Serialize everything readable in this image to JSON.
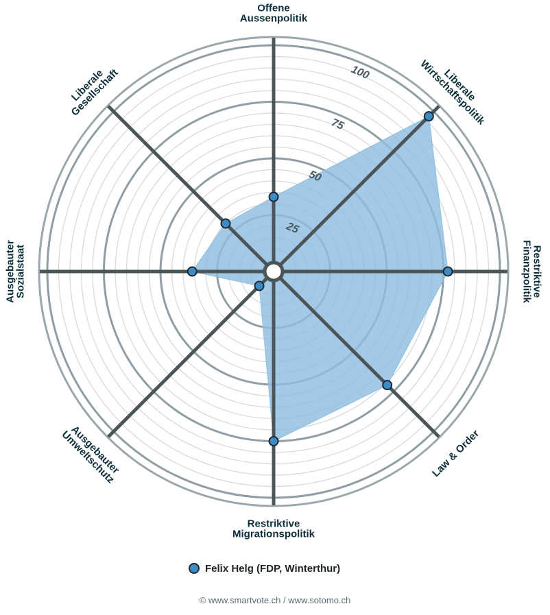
{
  "chart_data": {
    "type": "radar",
    "axes": [
      {
        "label_lines": [
          "Offene",
          "Aussenpolitik"
        ]
      },
      {
        "label_lines": [
          "Liberale",
          "Wirtschaftspolitik"
        ]
      },
      {
        "label_lines": [
          "Restriktive",
          "Finanzpolitik"
        ]
      },
      {
        "label_lines": [
          "Law & Order"
        ]
      },
      {
        "label_lines": [
          "Restriktive",
          "Migrationspolitik"
        ]
      },
      {
        "label_lines": [
          "Ausgebauter",
          "Umweltschutz"
        ]
      },
      {
        "label_lines": [
          "Ausgebauter",
          "Sozialstaat"
        ]
      },
      {
        "label_lines": [
          "Liberale",
          "Gesellschaft"
        ]
      }
    ],
    "series": [
      {
        "name": "Felix Helg (FDP, Winterthur)",
        "color": "#3b8bc6",
        "fill": "#8dbddf",
        "values": [
          33,
          97,
          77,
          71,
          75,
          9,
          36,
          30
        ]
      }
    ],
    "rlim": [
      0,
      100
    ],
    "major_ticks": [
      25,
      50,
      75,
      100
    ],
    "minor_step": 5,
    "tick_labels": [
      "25",
      "50",
      "75",
      "100"
    ]
  },
  "legend": {
    "label": "Felix Helg (FDP, Winterthur)",
    "color": "#3b8bc6"
  },
  "credits": "© www.smartvote.ch / www.sotomo.ch"
}
